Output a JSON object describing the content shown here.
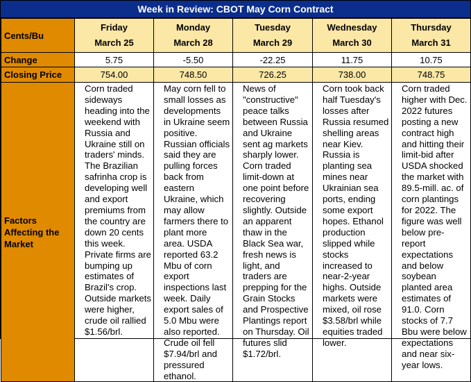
{
  "title": "Week in Review: CBOT May Corn Contract",
  "row_labels": {
    "header": "Cents/Bu",
    "change": "Change",
    "closing": "Closing Price",
    "factors": "Factors Affecting the Market"
  },
  "days": [
    {
      "day": "Friday",
      "date": "March 25",
      "change": "5.75",
      "closing": "754.00",
      "factors": "Corn traded sideways heading into the weekend with Russia and Ukraine still on traders' minds. The Brazilian safrinha crop is developing well and export premiums from the country are down 20 cents this week. Private firms are bumping up estimates of Brazil's crop. Outside markets were higher, crude oil rallied $1.56/brl."
    },
    {
      "day": "Monday",
      "date": "March 28",
      "change": "-5.50",
      "closing": "748.50",
      "factors": "May corn fell to small losses as developments in Ukraine seem positive. Russian officials said they are pulling forces back from eastern Ukraine, which may allow farmers there to plant more area. USDA reported 63.2 Mbu of corn export inspections last week. Daily export sales of 5.0 Mbu were also reported. Crude oil fell $7.94/brl and pressured ethanol."
    },
    {
      "day": "Tuesday",
      "date": "March 29",
      "change": "-22.25",
      "closing": "726.25",
      "factors": "News of \"constructive\" peace talks between Russia and Ukraine sent ag markets sharply lower. Corn traded limit-down at one point before recovering slightly. Outside an apparent thaw in the Black Sea war, fresh news is light, and traders are prepping for the Grain Stocks and Prospective Plantings report on Thursday. Oil futures slid $1.72/brl."
    },
    {
      "day": "Wednesday",
      "date": "March 30",
      "change": "11.75",
      "closing": "738.00",
      "factors": "Corn took back half Tuesday's losses after Russia resumed shelling areas near Kiev. Russia is planting sea mines near Ukrainian sea ports, ending some export hopes. Ethanol production slipped while stocks increased to near-2-year highs. Outside markets were mixed, oil rose $3.58/brl while equities traded lower."
    },
    {
      "day": "Thursday",
      "date": "March 31",
      "change": "10.75",
      "closing": "748.75",
      "factors": "Corn traded higher with Dec. 2022 futures posting a new contract high and hitting their limit-bid after USDA shocked the market with 89.5-mill. ac. of corn plantings for 2022. The figure was well below pre-report expectations and below soybean planted area estimates of 91.0. Corn stocks of 7.7 Bbu were below expectations and near six-year lows."
    }
  ],
  "colors": {
    "title_bg": "#0b2d8c",
    "label_bg": "#e08a00",
    "header_bg": "#fbe7a6"
  }
}
